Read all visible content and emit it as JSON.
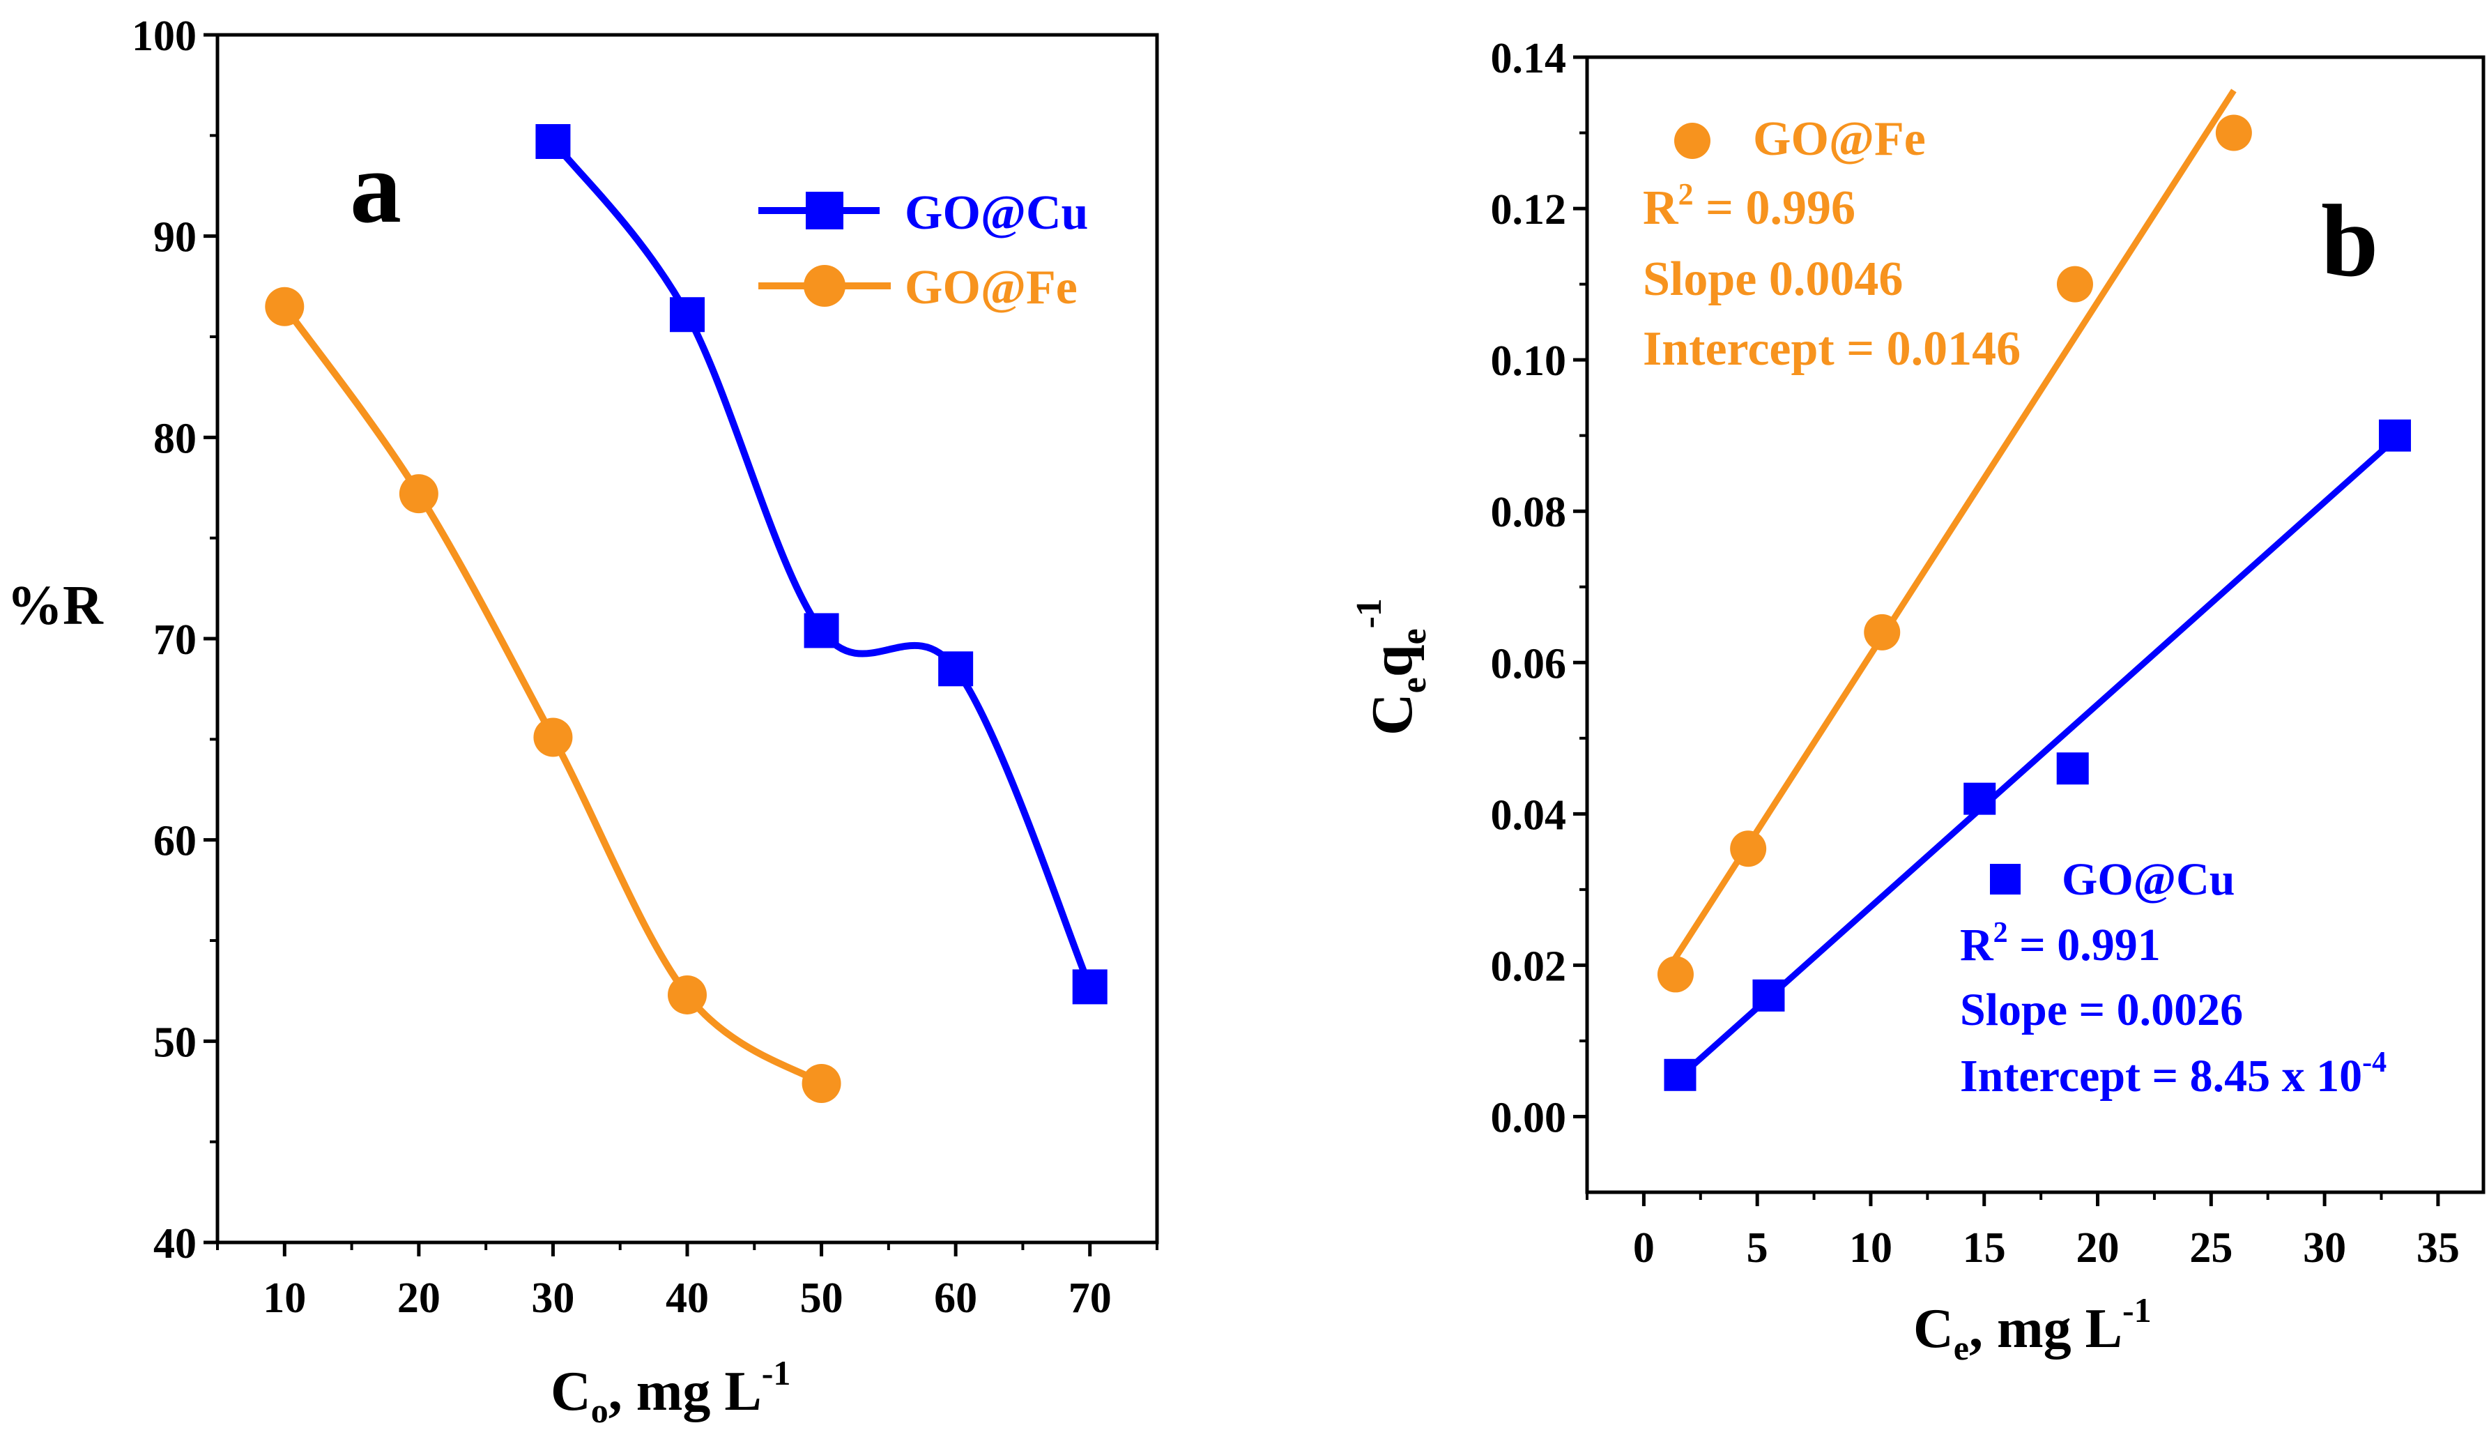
{
  "chart_data": [
    {
      "type": "line",
      "panel_label": "a",
      "title": "",
      "xlabel_main": "C",
      "xlabel_sub": "o",
      "xlabel_rest": ", mg L",
      "xlabel_sup": "-1",
      "ylabel": "%R",
      "xlim": [
        5,
        75
      ],
      "ylim": [
        40,
        100
      ],
      "xticks": [
        10,
        20,
        30,
        40,
        50,
        60,
        70
      ],
      "yticks": [
        40,
        50,
        60,
        70,
        80,
        90,
        100
      ],
      "legend_position": "top-right",
      "series": [
        {
          "name": "GO@Cu",
          "color": "#0000FF",
          "marker": "square",
          "x": [
            30,
            40,
            50,
            60,
            70
          ],
          "y": [
            94.7,
            86.1,
            70.4,
            68.5,
            52.7
          ]
        },
        {
          "name": "GO@Fe",
          "color": "#F7931E",
          "marker": "circle",
          "x": [
            10,
            20,
            30,
            40,
            50
          ],
          "y": [
            86.5,
            77.2,
            65.1,
            52.3,
            47.9
          ]
        }
      ]
    },
    {
      "type": "scatter",
      "panel_label": "b",
      "title": "",
      "xlabel_main": "C",
      "xlabel_sub": "e",
      "xlabel_rest": ", mg L",
      "xlabel_sup": "-1",
      "ylabel_c": "C",
      "ylabel_e1": "e",
      "ylabel_q": "q",
      "ylabel_e2": "e",
      "ylabel_sup": "-1",
      "xlim": [
        -2.5,
        37
      ],
      "ylim": [
        -0.01,
        0.14
      ],
      "xticks": [
        0,
        5,
        10,
        15,
        20,
        25,
        30,
        35
      ],
      "yticks": [
        0.0,
        0.02,
        0.04,
        0.06,
        0.08,
        0.1,
        0.12,
        0.14
      ],
      "ytick_labels": [
        "0.00",
        "0.02",
        "0.04",
        "0.06",
        "0.08",
        "0.10",
        "0.12",
        "0.14"
      ],
      "series": [
        {
          "name": "GO@Fe",
          "color": "#F7931E",
          "marker": "circle",
          "x": [
            1.4,
            4.6,
            10.5,
            19.0,
            26.0
          ],
          "y": [
            0.0188,
            0.0354,
            0.064,
            0.11,
            0.13
          ],
          "fit": {
            "x": [
              1.1,
              26.0
            ],
            "y": [
              0.0196,
              0.1356
            ]
          },
          "r2_prefix": "R",
          "r2_sup": "2",
          "r2_value": " = 0.996",
          "slope_text": "Slope 0.0046",
          "intercept_text": "Intercept = 0.0146"
        },
        {
          "name": "GO@Cu",
          "color": "#0000FF",
          "marker": "square",
          "x": [
            1.6,
            5.5,
            14.8,
            18.9,
            33.1
          ],
          "y": [
            0.0055,
            0.016,
            0.042,
            0.046,
            0.09
          ],
          "fit": {
            "x": [
              1.5,
              33.1
            ],
            "y": [
              0.005,
              0.0895
            ]
          },
          "r2_prefix": "R",
          "r2_sup": "2",
          "r2_value": " = 0.991",
          "slope_text": "Slope = 0.0026",
          "intercept_text": "Intercept = 8.45 x 10",
          "intercept_sup": "-4"
        }
      ]
    }
  ]
}
